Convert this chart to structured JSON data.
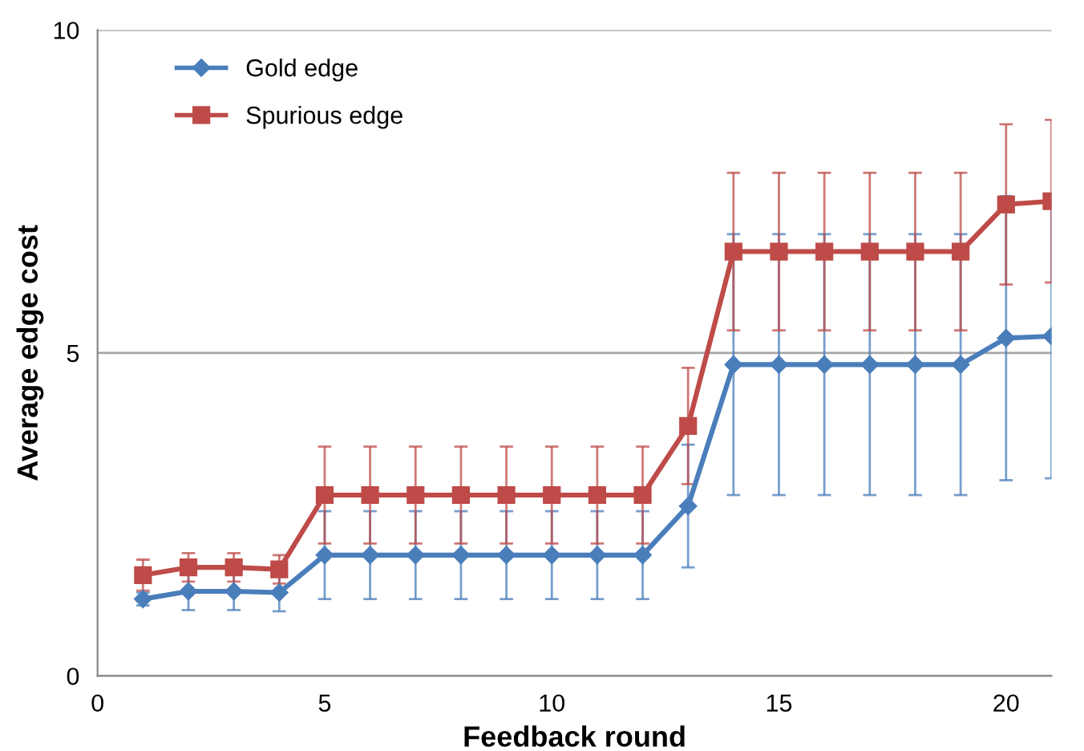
{
  "chart_data": {
    "type": "line",
    "xlabel": "Feedback round",
    "ylabel": "Average edge cost",
    "x": [
      1,
      2,
      3,
      4,
      5,
      6,
      7,
      8,
      9,
      10,
      11,
      12,
      13,
      14,
      15,
      16,
      17,
      18,
      19,
      20,
      21
    ],
    "xlim": [
      0,
      21
    ],
    "xticks": [
      0,
      5,
      10,
      15,
      20
    ],
    "ylim": [
      0,
      10
    ],
    "yticks": [
      0,
      5,
      10
    ],
    "grid": "y",
    "legend": "top left",
    "line_style": "solid",
    "series": [
      {
        "name": "Gold edge",
        "color": "#4a7ebb",
        "marker": "diamond",
        "values": [
          1.19,
          1.31,
          1.31,
          1.29,
          1.87,
          1.87,
          1.87,
          1.87,
          1.87,
          1.87,
          1.87,
          1.87,
          2.63,
          4.82,
          4.82,
          4.82,
          4.82,
          4.82,
          4.82,
          5.23,
          5.26
        ],
        "errors": [
          0.1,
          0.29,
          0.29,
          0.29,
          0.68,
          0.68,
          0.68,
          0.68,
          0.68,
          0.68,
          0.68,
          0.68,
          0.95,
          2.02,
          2.02,
          2.02,
          2.02,
          2.02,
          2.02,
          2.2,
          2.2
        ]
      },
      {
        "name": "Spurious edge",
        "color": "#be4b48",
        "marker": "square",
        "values": [
          1.56,
          1.68,
          1.68,
          1.65,
          2.8,
          2.8,
          2.8,
          2.8,
          2.8,
          2.8,
          2.8,
          2.8,
          3.87,
          6.57,
          6.57,
          6.57,
          6.57,
          6.57,
          6.57,
          7.3,
          7.35
        ],
        "errors": [
          0.24,
          0.22,
          0.22,
          0.22,
          0.75,
          0.75,
          0.75,
          0.75,
          0.75,
          0.75,
          0.75,
          0.75,
          0.9,
          1.22,
          1.22,
          1.22,
          1.22,
          1.22,
          1.22,
          1.24,
          1.26
        ]
      }
    ]
  }
}
